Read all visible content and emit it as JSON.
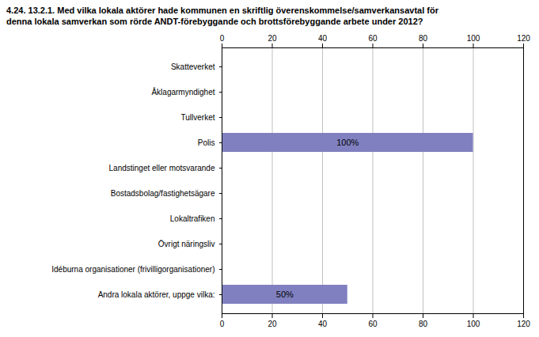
{
  "chart_data": {
    "type": "bar",
    "orientation": "horizontal",
    "title": "4.24. 13.2.1. Med vilka lokala aktörer hade kommunen en skriftlig överenskommelse/samverkansavtal för\ndenna lokala samverkan som rörde ANDT-förebyggande och brottsförebyggande arbete under 2012?",
    "categories": [
      "Skatteverket",
      "Åklagarmyndighet",
      "Tullverket",
      "Polis",
      "Landstinget eller motsvarande",
      "Bostadsbolag/fastighetsägare",
      "Lokaltrafiken",
      "Övrigt näringsliv",
      "Idéburna organisationer (frivilligorganisationer)",
      "Andra lokala aktörer, uppge vilka:"
    ],
    "values": [
      0,
      0,
      0,
      100,
      0,
      0,
      0,
      0,
      0,
      50
    ],
    "value_labels": [
      null,
      null,
      null,
      "100%",
      null,
      null,
      null,
      null,
      null,
      "50%"
    ],
    "data_labels": true,
    "color": "#8080c0",
    "xlim": [
      0,
      120
    ],
    "xticks": [
      0,
      20,
      40,
      60,
      80,
      100,
      120
    ],
    "grid": true
  }
}
